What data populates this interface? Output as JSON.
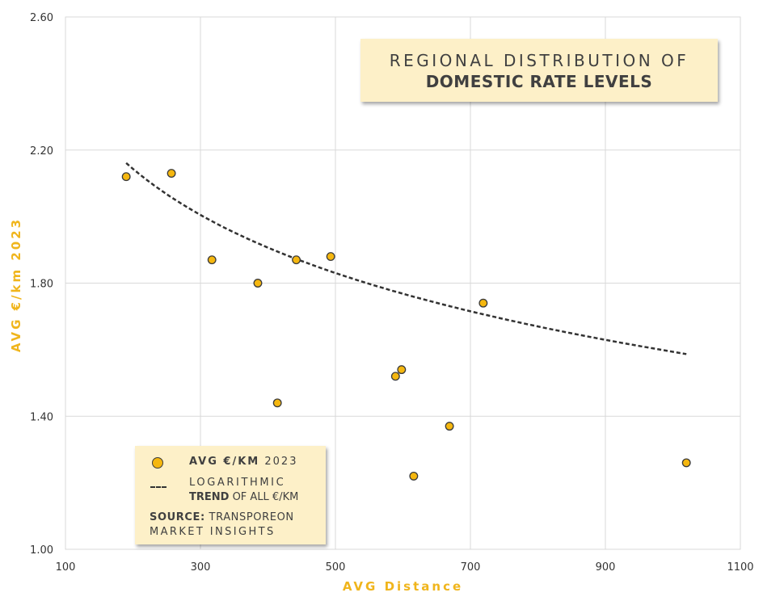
{
  "chart_data": {
    "type": "scatter",
    "title": [
      "REGIONAL DISTRIBUTION OF",
      "DOMESTIC RATE LEVELS"
    ],
    "xlabel": "AVG Distance",
    "ylabel": "AVG €/km 2023",
    "xlim": [
      100,
      1100
    ],
    "ylim": [
      1.0,
      2.6
    ],
    "xticks": [
      "100",
      "300",
      "500",
      "700",
      "900",
      "1100"
    ],
    "yticks": [
      "1.00",
      "1.40",
      "1.80",
      "2.20",
      "2.60"
    ],
    "grid": true,
    "series": [
      {
        "name": "AVG €/KM 2023",
        "points": [
          {
            "x": 190,
            "y": 2.12
          },
          {
            "x": 257,
            "y": 2.13
          },
          {
            "x": 317,
            "y": 1.87
          },
          {
            "x": 385,
            "y": 1.8
          },
          {
            "x": 414,
            "y": 1.44
          },
          {
            "x": 442,
            "y": 1.87
          },
          {
            "x": 493,
            "y": 1.88
          },
          {
            "x": 589,
            "y": 1.52
          },
          {
            "x": 598,
            "y": 1.54
          },
          {
            "x": 616,
            "y": 1.22
          },
          {
            "x": 669,
            "y": 1.37
          },
          {
            "x": 719,
            "y": 1.74
          },
          {
            "x": 1020,
            "y": 1.26
          }
        ]
      }
    ],
    "trendline": {
      "name": "LOGARITHMIC TREND OF ALL €/KM",
      "type": "logarithmic",
      "a": 3.954,
      "b": -0.3417,
      "x_range": [
        190,
        1020
      ]
    },
    "legend": {
      "marker_label_bold": "AVG €/KM",
      "marker_label_rest": "2023",
      "trend_line1": "LOGARITHMIC",
      "trend_line2_bold": "TREND",
      "trend_line2_rest": "OF ALL €/KM",
      "source_bold": "SOURCE:",
      "source_rest": "TRANSPOREON",
      "source_line2": "MARKET INSIGHTS"
    },
    "colors": {
      "marker": "#f5b70f",
      "marker_edge": "#3a3a3a",
      "axis_title": "#f0b51c",
      "box_fill": "#fdf0c8",
      "grid": "#d9d9d9",
      "trend": "#333333"
    }
  }
}
